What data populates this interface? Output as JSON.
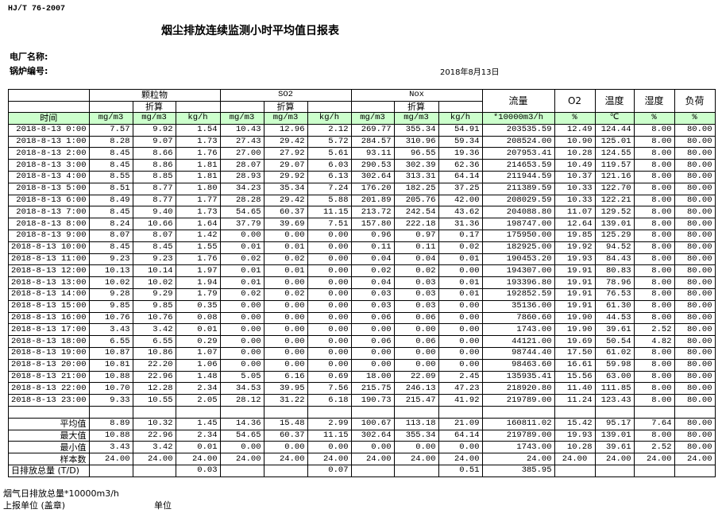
{
  "standard": "HJ/T  76-2007",
  "title": "烟尘排放连续监测小时平均值日报表",
  "plant_label": "电厂名称:",
  "boiler_label": "锅炉编号:",
  "report_date": "2018年8月13日",
  "header": {
    "groups": [
      "颗粒物",
      "SO2",
      "Nox"
    ],
    "converted": "折算",
    "flow": "流量",
    "o2": "O2",
    "temperature": "温度",
    "humidity": "湿度",
    "load": "负荷",
    "units": [
      "时间",
      "mg/m3",
      "mg/m3",
      "kg/h",
      "mg/m3",
      "mg/m3",
      "kg/h",
      "mg/m3",
      "mg/m3",
      "kg/h",
      "*10000m3/h",
      "%",
      "℃",
      "%",
      "%"
    ]
  },
  "rows": [
    [
      "2018-8-13 0:00",
      "7.57",
      "9.92",
      "1.54",
      "10.43",
      "12.96",
      "2.12",
      "269.77",
      "355.34",
      "54.91",
      "203535.59",
      "12.49",
      "124.44",
      "8.00",
      "80.00"
    ],
    [
      "2018-8-13 1:00",
      "8.28",
      "9.07",
      "1.73",
      "27.43",
      "29.42",
      "5.72",
      "284.57",
      "310.96",
      "59.34",
      "208524.00",
      "10.90",
      "125.01",
      "8.00",
      "80.00"
    ],
    [
      "2018-8-13 2:00",
      "8.45",
      "8.66",
      "1.76",
      "27.00",
      "27.92",
      "5.61",
      "93.11",
      "96.55",
      "19.36",
      "207953.41",
      "10.28",
      "124.55",
      "8.00",
      "80.00"
    ],
    [
      "2018-8-13 3:00",
      "8.45",
      "8.86",
      "1.81",
      "28.07",
      "29.07",
      "6.03",
      "290.53",
      "302.39",
      "62.36",
      "214653.59",
      "10.49",
      "119.57",
      "8.00",
      "80.00"
    ],
    [
      "2018-8-13 4:00",
      "8.55",
      "8.85",
      "1.81",
      "28.93",
      "29.92",
      "6.13",
      "302.64",
      "313.31",
      "64.14",
      "211944.59",
      "10.37",
      "121.16",
      "8.00",
      "80.00"
    ],
    [
      "2018-8-13 5:00",
      "8.51",
      "8.77",
      "1.80",
      "34.23",
      "35.34",
      "7.24",
      "176.20",
      "182.25",
      "37.25",
      "211389.59",
      "10.33",
      "122.70",
      "8.00",
      "80.00"
    ],
    [
      "2018-8-13 6:00",
      "8.49",
      "8.77",
      "1.77",
      "28.28",
      "29.42",
      "5.88",
      "201.89",
      "205.76",
      "42.00",
      "208029.59",
      "10.33",
      "122.21",
      "8.00",
      "80.00"
    ],
    [
      "2018-8-13 7:00",
      "8.45",
      "9.40",
      "1.73",
      "54.65",
      "60.37",
      "11.15",
      "213.72",
      "242.54",
      "43.62",
      "204088.80",
      "11.07",
      "129.52",
      "8.00",
      "80.00"
    ],
    [
      "2018-8-13 8:00",
      "8.24",
      "10.66",
      "1.64",
      "37.79",
      "39.69",
      "7.51",
      "157.80",
      "222.18",
      "31.36",
      "198747.00",
      "12.64",
      "139.01",
      "8.00",
      "80.00"
    ],
    [
      "2018-8-13 9:00",
      "8.07",
      "8.07",
      "1.42",
      "0.00",
      "0.00",
      "0.00",
      "0.96",
      "0.97",
      "0.17",
      "175950.00",
      "19.85",
      "125.29",
      "8.00",
      "80.00"
    ],
    [
      "2018-8-13 10:00",
      "8.45",
      "8.45",
      "1.55",
      "0.01",
      "0.01",
      "0.00",
      "0.11",
      "0.11",
      "0.02",
      "182925.00",
      "19.92",
      "94.52",
      "8.00",
      "80.00"
    ],
    [
      "2018-8-13 11:00",
      "9.23",
      "9.23",
      "1.76",
      "0.02",
      "0.02",
      "0.00",
      "0.04",
      "0.04",
      "0.01",
      "190453.20",
      "19.93",
      "84.43",
      "8.00",
      "80.00"
    ],
    [
      "2018-8-13 12:00",
      "10.13",
      "10.14",
      "1.97",
      "0.01",
      "0.01",
      "0.00",
      "0.02",
      "0.02",
      "0.00",
      "194307.00",
      "19.91",
      "80.83",
      "8.00",
      "80.00"
    ],
    [
      "2018-8-13 13:00",
      "10.02",
      "10.02",
      "1.94",
      "0.01",
      "0.00",
      "0.00",
      "0.04",
      "0.03",
      "0.01",
      "193396.80",
      "19.91",
      "78.96",
      "8.00",
      "80.00"
    ],
    [
      "2018-8-13 14:00",
      "9.28",
      "9.29",
      "1.79",
      "0.02",
      "0.02",
      "0.00",
      "0.03",
      "0.03",
      "0.01",
      "192852.59",
      "19.91",
      "76.53",
      "8.00",
      "80.00"
    ],
    [
      "2018-8-13 15:00",
      "9.85",
      "9.85",
      "0.35",
      "0.00",
      "0.00",
      "0.00",
      "0.03",
      "0.03",
      "0.00",
      "35136.00",
      "19.91",
      "61.30",
      "8.00",
      "80.00"
    ],
    [
      "2018-8-13 16:00",
      "10.76",
      "10.76",
      "0.08",
      "0.00",
      "0.00",
      "0.00",
      "0.06",
      "0.06",
      "0.00",
      "7860.60",
      "19.90",
      "44.53",
      "8.00",
      "80.00"
    ],
    [
      "2018-8-13 17:00",
      "3.43",
      "3.42",
      "0.01",
      "0.00",
      "0.00",
      "0.00",
      "0.00",
      "0.00",
      "0.00",
      "1743.00",
      "19.90",
      "39.61",
      "2.52",
      "80.00"
    ],
    [
      "2018-8-13 18:00",
      "6.55",
      "6.55",
      "0.29",
      "0.00",
      "0.00",
      "0.00",
      "0.06",
      "0.06",
      "0.00",
      "44121.00",
      "19.69",
      "50.54",
      "4.82",
      "80.00"
    ],
    [
      "2018-8-13 19:00",
      "10.87",
      "10.86",
      "1.07",
      "0.00",
      "0.00",
      "0.00",
      "0.00",
      "0.00",
      "0.00",
      "98744.40",
      "17.50",
      "61.02",
      "8.00",
      "80.00"
    ],
    [
      "2018-8-13 20:00",
      "10.81",
      "22.20",
      "1.06",
      "0.00",
      "0.00",
      "0.00",
      "0.00",
      "0.00",
      "0.00",
      "98463.60",
      "16.61",
      "59.98",
      "8.00",
      "80.00"
    ],
    [
      "2018-8-13 21:00",
      "10.88",
      "22.96",
      "1.48",
      "5.05",
      "6.16",
      "0.69",
      "18.00",
      "22.09",
      "2.45",
      "135935.41",
      "15.56",
      "63.00",
      "8.00",
      "80.00"
    ],
    [
      "2018-8-13 22:00",
      "10.70",
      "12.28",
      "2.34",
      "34.53",
      "39.95",
      "7.56",
      "215.75",
      "246.13",
      "47.23",
      "218920.80",
      "11.40",
      "111.85",
      "8.00",
      "80.00"
    ],
    [
      "2018-8-13 23:00",
      "9.33",
      "10.55",
      "2.05",
      "28.12",
      "31.22",
      "6.18",
      "190.73",
      "215.47",
      "41.92",
      "219789.00",
      "11.24",
      "123.43",
      "8.00",
      "80.00"
    ]
  ],
  "stats": [
    [
      "平均值",
      "8.89",
      "10.32",
      "1.45",
      "14.36",
      "15.48",
      "2.99",
      "100.67",
      "113.18",
      "21.09",
      "160811.02",
      "15.42",
      "95.17",
      "7.64",
      "80.00"
    ],
    [
      "最大值",
      "10.88",
      "22.96",
      "2.34",
      "54.65",
      "60.37",
      "11.15",
      "302.64",
      "355.34",
      "64.14",
      "219789.00",
      "19.93",
      "139.01",
      "8.00",
      "80.00"
    ],
    [
      "最小值",
      "3.43",
      "3.42",
      "0.01",
      "0.00",
      "0.00",
      "0.00",
      "0.00",
      "0.00",
      "0.00",
      "1743.00",
      "10.28",
      "39.61",
      "2.52",
      "80.00"
    ],
    [
      "样本数",
      "24.00",
      "24.00",
      "24.00",
      "24.00",
      "24.00",
      "24.00",
      "24.00",
      "24.00",
      "24.00",
      "24.00",
      "24.00",
      "24.00",
      "24.00",
      "24.00"
    ],
    [
      "日排放总量 (T/D)",
      "",
      "",
      "0.03",
      "",
      "",
      "0.07",
      "",
      "",
      "0.51",
      "385.95",
      "",
      "",
      "",
      ""
    ]
  ],
  "footer": {
    "flue_gas_total": "烟气日排放总量*10000m3/h",
    "reporting_unit": "上报单位 (盖章)",
    "unit": "单位"
  }
}
